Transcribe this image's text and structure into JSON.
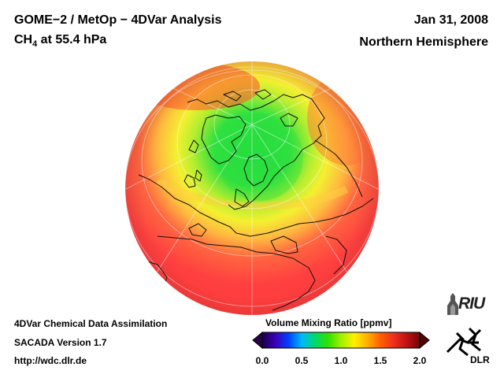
{
  "header": {
    "title": "GOME−2 / MetOp − 4DVar Analysis",
    "species": "CH",
    "species_sub": "4",
    "pressure": " at 55.4 hPa",
    "date": "Jan 31, 2008",
    "region": "Northern Hemisphere"
  },
  "footer": {
    "line1": "4DVar Chemical Data Assimilation",
    "line2": "SACADA Version 1.7",
    "line3": "http://wdc.dlr.de"
  },
  "colorbar": {
    "title": "Volume Mixing Ratio [ppmv]",
    "ticks": [
      "0.0",
      "0.5",
      "1.0",
      "1.5",
      "2.0"
    ],
    "range": [
      0.0,
      2.0
    ],
    "colors": [
      "#1a004a",
      "#3a00b8",
      "#0040ff",
      "#00b8ff",
      "#00d870",
      "#30e000",
      "#a0f000",
      "#fff000",
      "#ffb000",
      "#ff6000",
      "#f03020",
      "#c01010",
      "#700808"
    ]
  },
  "map": {
    "projection": "orthographic",
    "hemisphere": "Northern Hemisphere",
    "features": [
      "coastlines",
      "graticule",
      "field-shading"
    ],
    "field_colors": {
      "low": "#2ee040",
      "mid": "#e8f030",
      "high": "#ff3e3a"
    }
  },
  "logos": {
    "riu": "RIU",
    "dlr": "DLR"
  }
}
